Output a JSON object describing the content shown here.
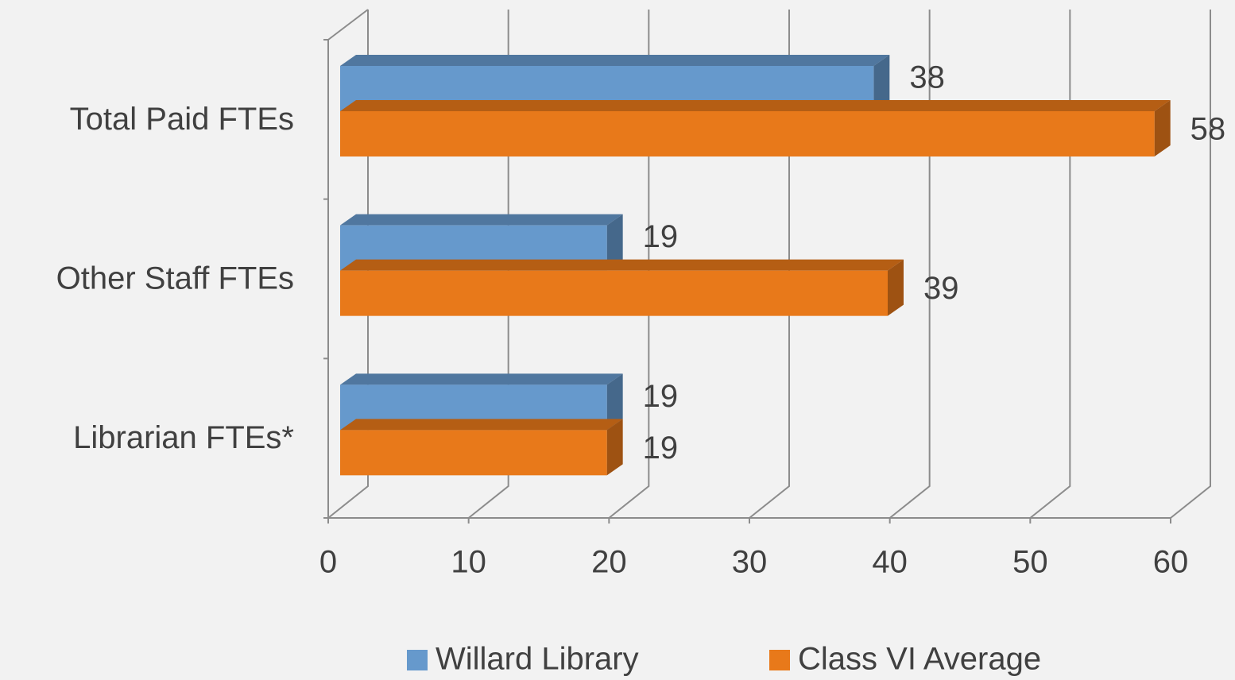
{
  "chart_data": {
    "type": "bar3d",
    "orientation": "horizontal",
    "categories": [
      "Total Paid FTEs",
      "Other Staff FTEs",
      "Librarian FTEs*"
    ],
    "series": [
      {
        "name": "Willard Library",
        "color": "#6699cc",
        "values": [
          38,
          19,
          19
        ]
      },
      {
        "name": "Class VI Average",
        "color": "#e8791a",
        "values": [
          58,
          39,
          19
        ]
      }
    ],
    "xlim": [
      0,
      60
    ],
    "xticks": [
      0,
      10,
      20,
      30,
      40,
      50,
      60
    ],
    "grid": true,
    "legend": "bottom"
  }
}
